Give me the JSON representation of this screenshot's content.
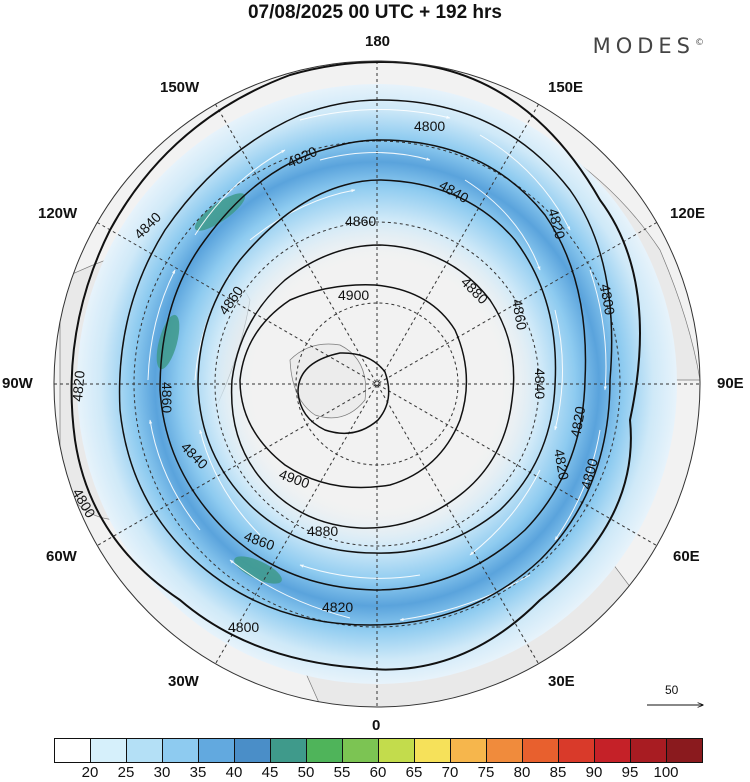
{
  "title": "07/08/2025  00 UTC  + 192 hrs",
  "brand": {
    "name": "MODES",
    "mark": "©"
  },
  "longitude_labels": [
    "180",
    "150E",
    "120E",
    "90E",
    "60E",
    "30E",
    "0",
    "30W",
    "60W",
    "90W",
    "120W",
    "150W"
  ],
  "contour_levels": [
    4800,
    4820,
    4840,
    4860,
    4880,
    4900
  ],
  "contour_labels": [
    {
      "text": "4800"
    },
    {
      "text": "4820"
    },
    {
      "text": "4840"
    },
    {
      "text": "4860"
    },
    {
      "text": "4800"
    },
    {
      "text": "4820"
    },
    {
      "text": "4860"
    },
    {
      "text": "4880"
    },
    {
      "text": "4900"
    },
    {
      "text": "4840"
    },
    {
      "text": "4860"
    },
    {
      "text": "4880"
    },
    {
      "text": "4900"
    },
    {
      "text": "4820"
    },
    {
      "text": "4840"
    },
    {
      "text": "4860"
    },
    {
      "text": "4800"
    },
    {
      "text": "4820"
    },
    {
      "text": "4800"
    },
    {
      "text": "4840"
    },
    {
      "text": "4860"
    },
    {
      "text": "4820"
    },
    {
      "text": "4800"
    },
    {
      "text": "4820"
    }
  ],
  "colorbar": {
    "labels": [
      "20",
      "25",
      "30",
      "35",
      "40",
      "45",
      "50",
      "55",
      "60",
      "65",
      "70",
      "75",
      "80",
      "85",
      "90",
      "95",
      "100"
    ],
    "colors": [
      "#ffffff",
      "#d6f0fb",
      "#b4e0f6",
      "#8ecbf0",
      "#62a9df",
      "#4a8ec8",
      "#3f9a8b",
      "#4fb45a",
      "#7cc453",
      "#c3dc4c",
      "#f6e15a",
      "#f6b64c",
      "#f08b3c",
      "#e8602e",
      "#d93a2a",
      "#c52128",
      "#a81c22",
      "#8a1a1e"
    ]
  },
  "reference_vector": {
    "label": "50"
  }
}
